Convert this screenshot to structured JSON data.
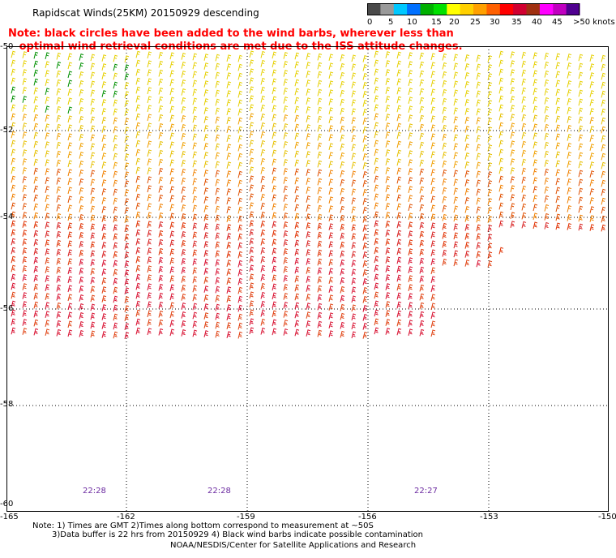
{
  "header": {
    "title": "Rapidscat Winds(25KM) 20150929 descending",
    "note_lines": [
      "Note: black circles have been added to the wind barbs, wherever less than",
      "   optimal wind retrieval conditions are met due to the ISS attitude changes."
    ]
  },
  "colorbar": {
    "labels": [
      "0",
      "5",
      "10",
      "15",
      "20",
      "25",
      "30",
      "35",
      "40",
      "45",
      ">50 knots"
    ],
    "colors": [
      "#4a4a4a",
      "#9a9a9a",
      "#00c8ff",
      "#0070ff",
      "#00b000",
      "#00e000",
      "#ffff00",
      "#ffd000",
      "#ffa000",
      "#ff6000",
      "#ff0000",
      "#d00030",
      "#a03010",
      "#ff00ff",
      "#c000c0",
      "#500090"
    ]
  },
  "axes": {
    "lat_labels": [
      "-50",
      "-52",
      "-54",
      "-56",
      "-58",
      "-60"
    ],
    "lon_labels": [
      "-165",
      "-162",
      "-159",
      "-156",
      "-153",
      "-150"
    ]
  },
  "times": [
    "22:28",
    "22:28",
    "22:27"
  ],
  "footer": {
    "note1": "Note: 1) Times are GMT 2)Times along bottom correspond to measurement at ~50S",
    "note2": "3)Data buffer is 22 hrs from 20150929 4) Black wind barbs indicate possible contamination",
    "credit": "NOAA/NESDIS/Center for Satellite Applications and Research"
  }
}
